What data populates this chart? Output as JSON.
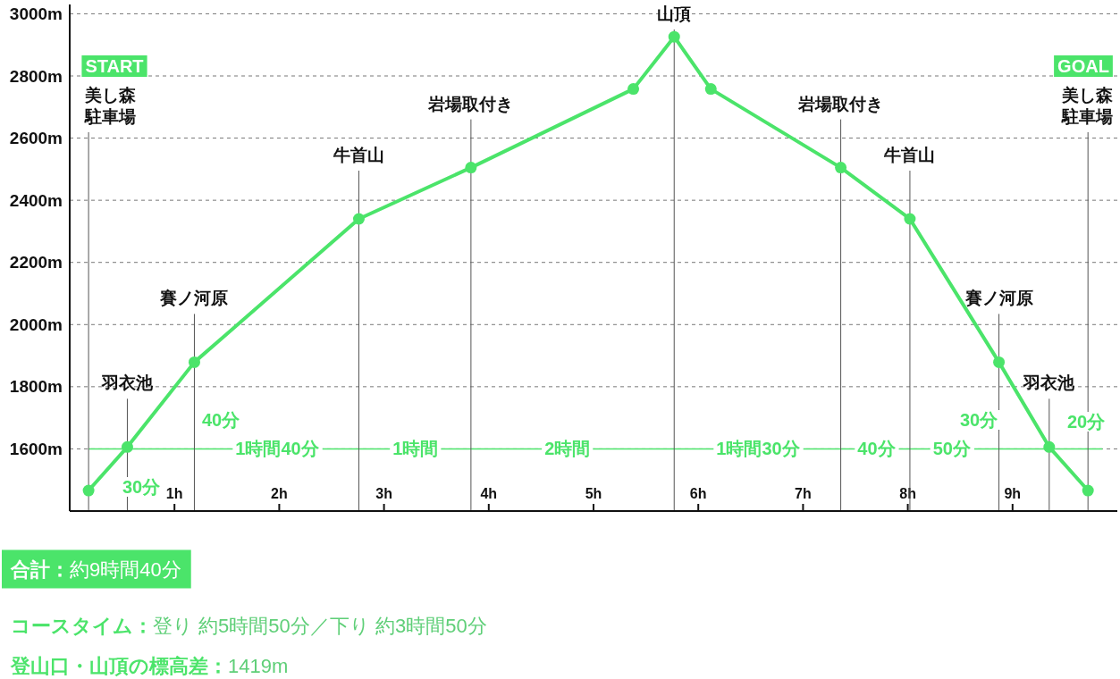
{
  "chart_data": {
    "type": "line",
    "color": "#4be46a",
    "x": [
      0.18,
      0.55,
      1.19,
      2.76,
      3.83,
      5.38,
      5.77,
      6.12,
      7.36,
      8.02,
      8.87,
      9.35,
      9.72
    ],
    "values": [
      1466,
      1606,
      1879,
      2340,
      2505,
      2758,
      2926,
      2758,
      2505,
      2340,
      1879,
      1606,
      1466
    ],
    "marker": "circle",
    "xlim": [
      0,
      10
    ],
    "xticks": [
      {
        "value": 1,
        "label": "1h"
      },
      {
        "value": 2,
        "label": "2h"
      },
      {
        "value": 3,
        "label": "3h"
      },
      {
        "value": 4,
        "label": "4h"
      },
      {
        "value": 5,
        "label": "5h"
      },
      {
        "value": 6,
        "label": "6h"
      },
      {
        "value": 7,
        "label": "7h"
      },
      {
        "value": 8,
        "label": "8h"
      },
      {
        "value": 9,
        "label": "9h"
      }
    ],
    "ylim": [
      1400,
      3030
    ],
    "yticks": [
      {
        "value": 1600,
        "label": "1600m"
      },
      {
        "value": 1800,
        "label": "1800m"
      },
      {
        "value": 2000,
        "label": "2000m"
      },
      {
        "value": 2200,
        "label": "2200m"
      },
      {
        "value": 2400,
        "label": "2400m"
      },
      {
        "value": 2600,
        "label": "2600m"
      },
      {
        "value": 2800,
        "label": "2800m"
      },
      {
        "value": 3000,
        "label": "3000m"
      }
    ],
    "grid": "y",
    "ref_lines": [
      {
        "axis": "y",
        "value": 1600,
        "color": "#4be46a"
      },
      {
        "axis": "x",
        "value": 0.18,
        "color": "#555555"
      },
      {
        "axis": "x",
        "value": 0.55,
        "color": "#555555"
      },
      {
        "axis": "x",
        "value": 1.19,
        "color": "#555555"
      },
      {
        "axis": "x",
        "value": 2.76,
        "color": "#555555"
      },
      {
        "axis": "x",
        "value": 3.83,
        "color": "#555555"
      },
      {
        "axis": "x",
        "value": 5.77,
        "color": "#555555"
      },
      {
        "axis": "x",
        "value": 7.36,
        "color": "#555555"
      },
      {
        "axis": "x",
        "value": 8.02,
        "color": "#555555"
      },
      {
        "axis": "x",
        "value": 8.87,
        "color": "#555555"
      },
      {
        "axis": "x",
        "value": 9.35,
        "color": "#555555"
      },
      {
        "axis": "x",
        "value": 9.72,
        "color": "#555555"
      }
    ],
    "annotations": [
      "美し森駐車場",
      "羽衣池",
      "賽ノ河原",
      "牛首山",
      "岩場取付き",
      "山頂",
      "岩場取付き",
      "牛首山",
      "賽ノ河原",
      "羽衣池",
      "美し森駐車場",
      {
        "text": "1時間40分",
        "x": 1.98,
        "y": 1600
      },
      {
        "text": "1時間",
        "x": 3.3,
        "y": 1600
      },
      {
        "text": "2時間",
        "x": 4.75,
        "y": 1600
      },
      {
        "text": "1時間30分",
        "x": 6.57,
        "y": 1600
      },
      {
        "text": "40分",
        "x": 7.7,
        "y": 1600
      },
      {
        "text": "50分",
        "x": 8.42,
        "y": 1600
      },
      "START",
      "GOAL",
      "30分",
      "40分",
      "30分",
      "20分",
      "合計：約9時間40分",
      "コースタイム：登り 約5時間50分／下り 約3時間50分",
      "登山口・山頂の標高差：1419m"
    ]
  }
}
